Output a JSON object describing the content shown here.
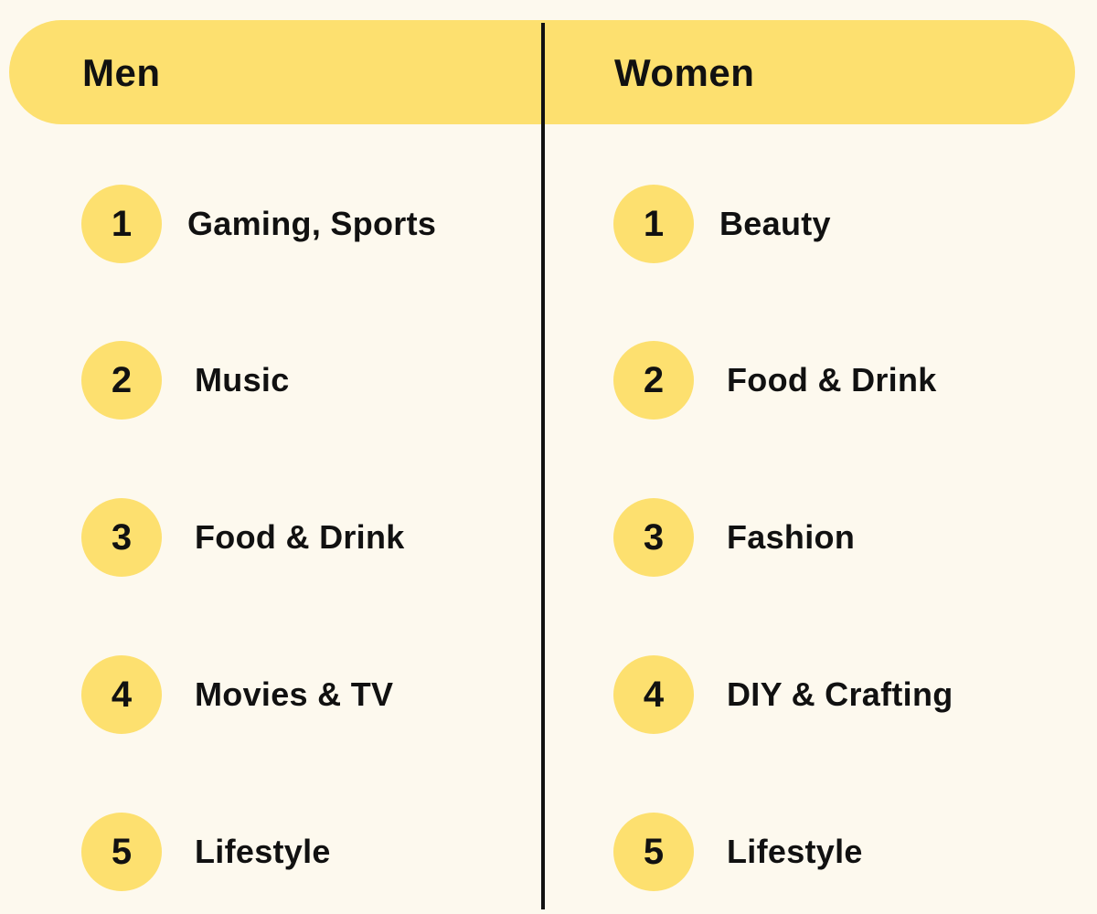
{
  "colors": {
    "background": "#fdf9ee",
    "accent": "#fde06f",
    "text": "#111111"
  },
  "columns": [
    {
      "title": "Men",
      "items": [
        {
          "rank": "1",
          "label": "Gaming, Sports"
        },
        {
          "rank": "2",
          "label": "Music"
        },
        {
          "rank": "3",
          "label": "Food & Drink"
        },
        {
          "rank": "4",
          "label": "Movies & TV"
        },
        {
          "rank": "5",
          "label": "Lifestyle"
        }
      ]
    },
    {
      "title": "Women",
      "items": [
        {
          "rank": "1",
          "label": "Beauty"
        },
        {
          "rank": "2",
          "label": "Food & Drink"
        },
        {
          "rank": "3",
          "label": "Fashion"
        },
        {
          "rank": "4",
          "label": "DIY & Crafting"
        },
        {
          "rank": "5",
          "label": "Lifestyle"
        }
      ]
    }
  ]
}
